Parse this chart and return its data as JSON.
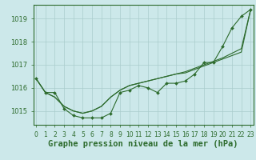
{
  "title": "Graphe pression niveau de la mer (hPa)",
  "background_color": "#cce8ea",
  "grid_color": "#aacccc",
  "line_color": "#2d6b2d",
  "x_labels": [
    "0",
    "1",
    "2",
    "3",
    "4",
    "5",
    "6",
    "7",
    "8",
    "9",
    "10",
    "11",
    "12",
    "13",
    "14",
    "15",
    "16",
    "17",
    "18",
    "19",
    "20",
    "21",
    "22",
    "23"
  ],
  "hours": [
    0,
    1,
    2,
    3,
    4,
    5,
    6,
    7,
    8,
    9,
    10,
    11,
    12,
    13,
    14,
    15,
    16,
    17,
    18,
    19,
    20,
    21,
    22,
    23
  ],
  "series1": [
    1016.4,
    1015.8,
    1015.8,
    1015.1,
    1014.8,
    1014.7,
    1014.7,
    1014.7,
    1014.9,
    1015.8,
    1015.9,
    1016.1,
    1016.0,
    1015.8,
    1016.2,
    1016.2,
    1016.3,
    1016.6,
    1017.1,
    1017.1,
    1017.8,
    1018.6,
    1019.1,
    1019.4
  ],
  "series2": [
    1016.4,
    1015.8,
    1015.6,
    1015.2,
    1015.0,
    1014.9,
    1015.0,
    1015.2,
    1015.6,
    1015.9,
    1016.1,
    1016.2,
    1016.3,
    1016.4,
    1016.5,
    1016.6,
    1016.7,
    1016.85,
    1017.0,
    1017.15,
    1017.3,
    1017.5,
    1017.7,
    1019.4
  ],
  "series3": [
    1016.4,
    1015.8,
    1015.6,
    1015.2,
    1015.0,
    1014.9,
    1015.0,
    1015.2,
    1015.6,
    1015.9,
    1016.1,
    1016.2,
    1016.3,
    1016.4,
    1016.5,
    1016.6,
    1016.65,
    1016.8,
    1016.95,
    1017.1,
    1017.25,
    1017.4,
    1017.55,
    1019.4
  ],
  "ylim_min": 1014.4,
  "ylim_max": 1019.6,
  "yticks": [
    1015,
    1016,
    1017,
    1018,
    1019
  ],
  "title_fontsize": 7.5,
  "tick_fontsize": 6.0
}
